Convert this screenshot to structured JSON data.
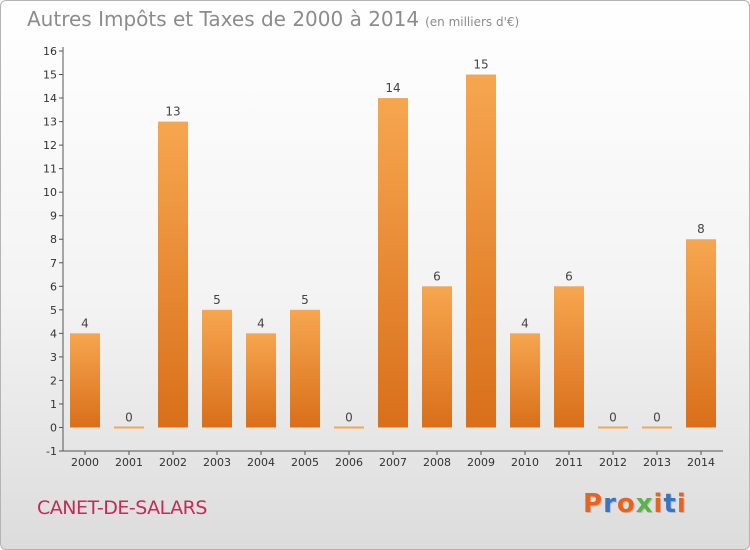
{
  "header": {
    "title": "Autres Impôts et Taxes de 2000 à 2014",
    "subtitle": "(en milliers d'€)"
  },
  "footer": {
    "location": "CANET-DE-SALARS",
    "logo_text": "Proxiti"
  },
  "colors": {
    "bar_top": "#f7a650",
    "bar_bottom": "#d96f1a",
    "location": "#c8285a",
    "logo_letters": [
      "#e8631c",
      "#3a73c4",
      "#e8631c",
      "#5ab34a",
      "#e8631c",
      "#3a73c4",
      "#e8631c"
    ]
  },
  "chart_data": {
    "type": "bar",
    "title": "Autres Impôts et Taxes de 2000 à 2014",
    "subtitle": "(en milliers d'€)",
    "categories": [
      "2000",
      "2001",
      "2002",
      "2003",
      "2004",
      "2005",
      "2006",
      "2007",
      "2008",
      "2009",
      "2010",
      "2011",
      "2012",
      "2013",
      "2014"
    ],
    "values": [
      4,
      0,
      13,
      5,
      4,
      5,
      0,
      14,
      6,
      15,
      4,
      6,
      0,
      0,
      8
    ],
    "ylim": [
      -1,
      16
    ],
    "yticks": [
      -1,
      0,
      1,
      2,
      3,
      4,
      5,
      6,
      7,
      8,
      9,
      10,
      11,
      12,
      13,
      14,
      15,
      16
    ],
    "grid": false,
    "xlabel": "",
    "ylabel": ""
  }
}
